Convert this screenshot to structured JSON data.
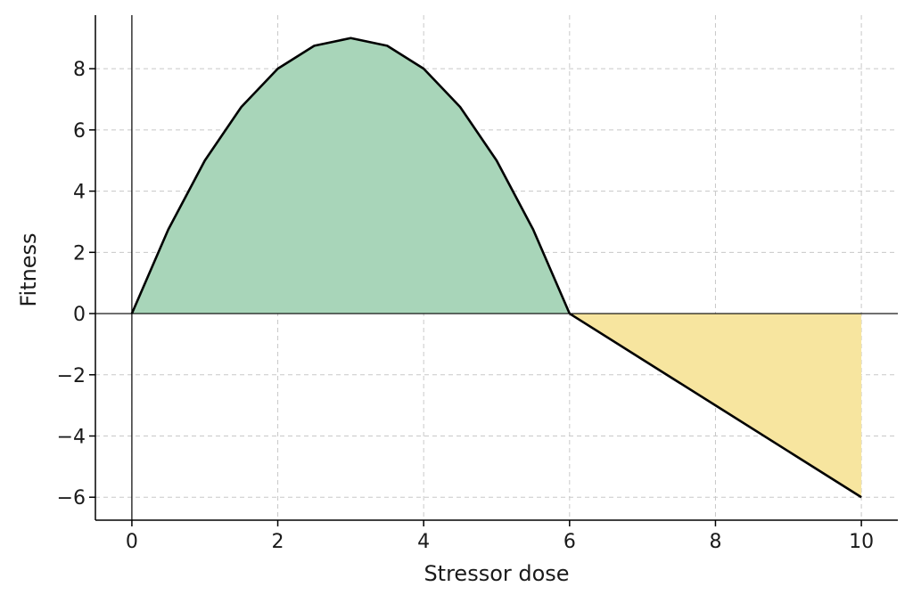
{
  "chart_data": {
    "type": "area",
    "title": "",
    "xlabel": "Stressor dose",
    "ylabel": "Fitness",
    "xlim": [
      -0.5,
      10.5
    ],
    "ylim": [
      -6.75,
      9.75
    ],
    "xticks": [
      0,
      2,
      4,
      6,
      8,
      10
    ],
    "yticks": [
      -6,
      -4,
      -2,
      0,
      2,
      4,
      6,
      8
    ],
    "xtick_labels": [
      "0",
      "2",
      "4",
      "6",
      "8",
      "10"
    ],
    "ytick_labels": [
      "−6",
      "−4",
      "−2",
      "0",
      "2",
      "4",
      "6",
      "8"
    ],
    "grid": true,
    "reference_lines": {
      "x": 0,
      "y": 0
    },
    "series": [
      {
        "formula": "y = x(6 - x)",
        "x": [
          0,
          0.5,
          1,
          1.5,
          2,
          2.5,
          3,
          3.5,
          4,
          4.5,
          5,
          5.5,
          6
        ],
        "y": [
          0,
          2.75,
          5,
          6.75,
          8,
          8.75,
          9,
          8.75,
          8,
          6.75,
          5,
          2.75,
          0
        ],
        "fill_color": "#a8d5b9"
      },
      {
        "formula": "y = -1.5(x - 6)",
        "x": [
          6,
          7,
          8,
          9,
          10
        ],
        "y": [
          0,
          -1.5,
          -3,
          -4.5,
          -6
        ],
        "fill_color": "#f7e59f"
      }
    ],
    "line_color": "#000000"
  }
}
